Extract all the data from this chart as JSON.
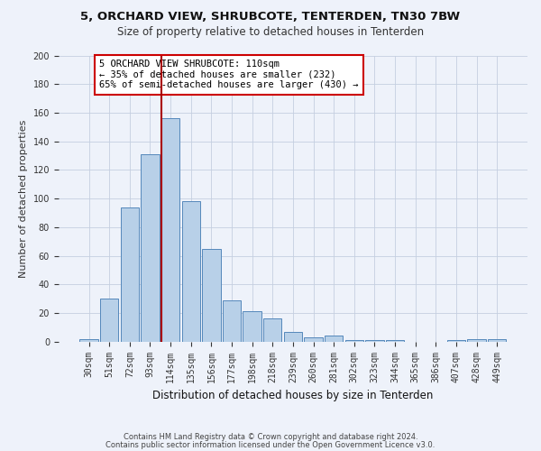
{
  "title1": "5, ORCHARD VIEW, SHRUBCOTE, TENTERDEN, TN30 7BW",
  "title2": "Size of property relative to detached houses in Tenterden",
  "xlabel": "Distribution of detached houses by size in Tenterden",
  "ylabel": "Number of detached properties",
  "footnote1": "Contains HM Land Registry data © Crown copyright and database right 2024.",
  "footnote2": "Contains public sector information licensed under the Open Government Licence v3.0.",
  "annotation_line1": "5 ORCHARD VIEW SHRUBCOTE: 110sqm",
  "annotation_line2": "← 35% of detached houses are smaller (232)",
  "annotation_line3": "65% of semi-detached houses are larger (430) →",
  "bar_color": "#b8d0e8",
  "bar_edge_color": "#5588bb",
  "vline_color": "#aa0000",
  "background_color": "#eef2fa",
  "categories": [
    "30sqm",
    "51sqm",
    "72sqm",
    "93sqm",
    "114sqm",
    "135sqm",
    "156sqm",
    "177sqm",
    "198sqm",
    "218sqm",
    "239sqm",
    "260sqm",
    "281sqm",
    "302sqm",
    "323sqm",
    "344sqm",
    "365sqm",
    "386sqm",
    "407sqm",
    "428sqm",
    "449sqm"
  ],
  "values": [
    2,
    30,
    94,
    131,
    156,
    98,
    65,
    29,
    21,
    16,
    7,
    3,
    4,
    1,
    1,
    1,
    0,
    0,
    1,
    2,
    2
  ],
  "vline_index": 4,
  "ylim": [
    0,
    200
  ],
  "yticks": [
    0,
    20,
    40,
    60,
    80,
    100,
    120,
    140,
    160,
    180,
    200
  ]
}
